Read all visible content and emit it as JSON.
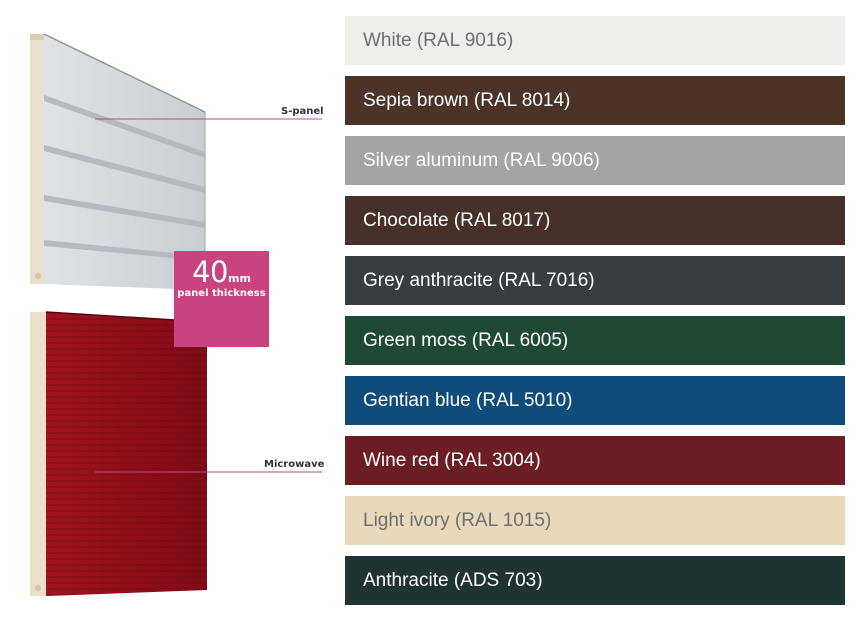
{
  "panels": {
    "s_panel_label": "S-panel",
    "microwave_label": "Microwave",
    "thickness_value": "40",
    "thickness_unit": "mm",
    "thickness_caption": "panel thickness"
  },
  "colors": [
    {
      "label": "White (RAL 9016)",
      "bg": "#efeeeb",
      "text": "#6f6f6f"
    },
    {
      "label": "Sepia brown (RAL 8014)",
      "bg": "#4b3427",
      "text": "#ffffff"
    },
    {
      "label": "Silver aluminum (RAL 9006)",
      "bg": "#a3a4a5",
      "text": "#ffffff"
    },
    {
      "label": "Chocolate (RAL 8017)",
      "bg": "#45302a",
      "text": "#ffffff"
    },
    {
      "label": "Grey anthracite (RAL 7016)",
      "bg": "#383d42",
      "text": "#ffffff"
    },
    {
      "label": "Green moss (RAL 6005)",
      "bg": "#1e4a34",
      "text": "#ffffff"
    },
    {
      "label": "Gentian blue (RAL 5010)",
      "bg": "#0e4c7b",
      "text": "#ffffff"
    },
    {
      "label": "Wine red (RAL 3004)",
      "bg": "#6b1c24",
      "text": "#ffffff"
    },
    {
      "label": "Light ivory (RAL 1015)",
      "bg": "#e8d9bb",
      "text": "#6f6f6f"
    },
    {
      "label": "Anthracite (ADS 703)",
      "bg": "#1f3333",
      "text": "#ffffff"
    }
  ]
}
